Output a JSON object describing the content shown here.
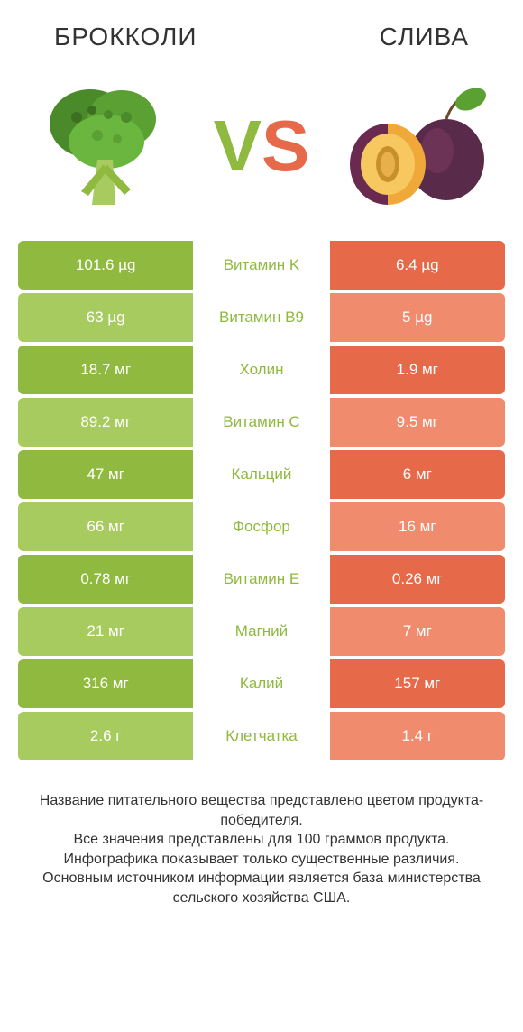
{
  "titles": {
    "left": "БРОККОЛИ",
    "right": "СЛИВА"
  },
  "vs": {
    "v": "V",
    "s": "S"
  },
  "colors": {
    "green_strong": "#8fb93f",
    "green_light": "#a8cb60",
    "red_strong": "#e6694a",
    "red_light": "#f08b6e",
    "white": "#ffffff"
  },
  "rows": [
    {
      "left": "101.6 µg",
      "center": "Витамин K",
      "right": "6.4 µg",
      "winner": "left"
    },
    {
      "left": "63 µg",
      "center": "Витамин B9",
      "right": "5 µg",
      "winner": "left"
    },
    {
      "left": "18.7 мг",
      "center": "Холин",
      "right": "1.9 мг",
      "winner": "left"
    },
    {
      "left": "89.2 мг",
      "center": "Витамин C",
      "right": "9.5 мг",
      "winner": "left"
    },
    {
      "left": "47 мг",
      "center": "Кальций",
      "right": "6 мг",
      "winner": "left"
    },
    {
      "left": "66 мг",
      "center": "Фосфор",
      "right": "16 мг",
      "winner": "left"
    },
    {
      "left": "0.78 мг",
      "center": "Витамин E",
      "right": "0.26 мг",
      "winner": "left"
    },
    {
      "left": "21 мг",
      "center": "Магний",
      "right": "7 мг",
      "winner": "left"
    },
    {
      "left": "316 мг",
      "center": "Калий",
      "right": "157 мг",
      "winner": "left"
    },
    {
      "left": "2.6 г",
      "center": "Клетчатка",
      "right": "1.4 г",
      "winner": "left"
    }
  ],
  "footer": [
    "Название питательного вещества представлено цветом продукта-победителя.",
    "Все значения представлены для 100 граммов продукта.",
    "Инфографика показывает только существенные различия.",
    "Основным источником информации является база министерства сельского хозяйства США."
  ]
}
